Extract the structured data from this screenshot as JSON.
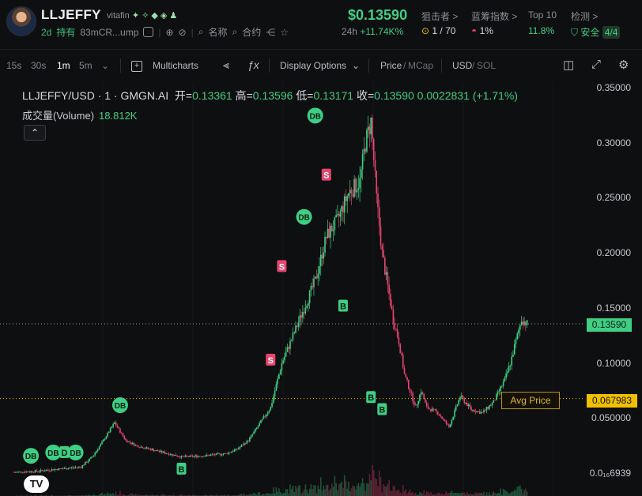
{
  "header": {
    "token_name": "LLJEFFY",
    "handle": "vitafin",
    "age": "2d",
    "holders_label": "持有",
    "address": "83mCR...ump",
    "website_label": "名称",
    "contract_label": "合约",
    "price": "$0.13590",
    "change_period": "24h",
    "change_pct": "+11.74K%",
    "sniper_label": "狙击者 >",
    "sniper_value": "1 / 70",
    "bluechip_label": "蓝筹指数 >",
    "bluechip_value": "1%",
    "top10_label": "Top 10",
    "top10_value": "11.8%",
    "audit_label": "检测 >",
    "audit_value": "安全",
    "audit_score": "4/4"
  },
  "toolbar": {
    "intervals": [
      "15s",
      "30s",
      "1m",
      "5m"
    ],
    "active_interval": "1m",
    "multicharts": "Multicharts",
    "display_options": "Display Options",
    "price_label": "Price",
    "mcap_label": "MCap",
    "usd_label": "USD",
    "sol_label": "SOL"
  },
  "legend": {
    "symbol": "LLJEFFY/USD · 1 · GMGN.AI",
    "open_label": "开=",
    "open": "0.13361",
    "high_label": "高=",
    "high": "0.13596",
    "low_label": "低=",
    "low": "0.13171",
    "close_label": "收=",
    "close": "0.13590",
    "change": "0.0022831 (+1.71%)",
    "volume_label": "成交量(Volume)",
    "volume_value": "18.812K"
  },
  "markers_text": {
    "db": "DB",
    "d": "D",
    "b": "B",
    "s": "S",
    "avg_price": "Avg Price",
    "current_price_tag": "0.13590",
    "avg_price_tag": "0.067983"
  },
  "colors": {
    "up": "#3fcf84",
    "down": "#e8456f",
    "avg": "#f0c000",
    "background": "#0e0f11"
  },
  "chart_data": {
    "type": "candlestick",
    "symbol": "LLJEFFY/USD",
    "interval": "1",
    "y_ticks": [
      "0.35000",
      "0.30000",
      "0.25000",
      "0.20000",
      "0.15000",
      "0.10000",
      "0.050000",
      "0.0₁₆6939"
    ],
    "ylim": [
      0.0,
      0.35
    ],
    "current_price": 0.1359,
    "avg_price": 0.067983,
    "price_path": [
      [
        0,
        0.001
      ],
      [
        4,
        0.002
      ],
      [
        8,
        0.004
      ],
      [
        12,
        0.006
      ],
      [
        14,
        0.015
      ],
      [
        16,
        0.03
      ],
      [
        18,
        0.046
      ],
      [
        20,
        0.03
      ],
      [
        22,
        0.025
      ],
      [
        26,
        0.02
      ],
      [
        30,
        0.015
      ],
      [
        34,
        0.016
      ],
      [
        38,
        0.018
      ],
      [
        40,
        0.022
      ],
      [
        42,
        0.03
      ],
      [
        44,
        0.045
      ],
      [
        46,
        0.06
      ],
      [
        47,
        0.08
      ],
      [
        48,
        0.1
      ],
      [
        50,
        0.125
      ],
      [
        52,
        0.15
      ],
      [
        54,
        0.175
      ],
      [
        56,
        0.215
      ],
      [
        58,
        0.23
      ],
      [
        60,
        0.255
      ],
      [
        62,
        0.265
      ],
      [
        63,
        0.3
      ],
      [
        64,
        0.32
      ],
      [
        65,
        0.25
      ],
      [
        66,
        0.2
      ],
      [
        67,
        0.17
      ],
      [
        68,
        0.14
      ],
      [
        69,
        0.12
      ],
      [
        70,
        0.09
      ],
      [
        71,
        0.075
      ],
      [
        72,
        0.06
      ],
      [
        73,
        0.075
      ],
      [
        74,
        0.06
      ],
      [
        76,
        0.055
      ],
      [
        78,
        0.042
      ],
      [
        80,
        0.07
      ],
      [
        82,
        0.058
      ],
      [
        84,
        0.055
      ],
      [
        86,
        0.065
      ],
      [
        88,
        0.085
      ],
      [
        89,
        0.1
      ],
      [
        90,
        0.12
      ],
      [
        91,
        0.14
      ],
      [
        92,
        0.1359
      ]
    ],
    "markers": [
      {
        "x": 3,
        "label": "DB",
        "kind": "buy",
        "y": 0.016
      },
      {
        "x": 7,
        "label": "DB",
        "kind": "buy",
        "y": 0.019
      },
      {
        "x": 9,
        "label": "D",
        "kind": "buy",
        "y": 0.019
      },
      {
        "x": 11,
        "label": "DB",
        "kind": "buy",
        "y": 0.019
      },
      {
        "x": 19,
        "label": "DB",
        "kind": "buy",
        "y": 0.062
      },
      {
        "x": 30,
        "label": "B",
        "kind": "buy",
        "y": 0.004
      },
      {
        "x": 46,
        "label": "S",
        "kind": "sell",
        "y": 0.103
      },
      {
        "x": 48,
        "label": "S",
        "kind": "sell",
        "y": 0.188
      },
      {
        "x": 52,
        "label": "DB",
        "kind": "buy",
        "y": 0.233
      },
      {
        "x": 54,
        "label": "DB",
        "kind": "buy",
        "y": 0.325
      },
      {
        "x": 56,
        "label": "S",
        "kind": "sell",
        "y": 0.271
      },
      {
        "x": 59,
        "label": "B",
        "kind": "buy",
        "y": 0.152
      },
      {
        "x": 64,
        "label": "B",
        "kind": "buy",
        "y": 0.069
      },
      {
        "x": 66,
        "label": "B",
        "kind": "buy",
        "y": 0.058
      }
    ]
  }
}
